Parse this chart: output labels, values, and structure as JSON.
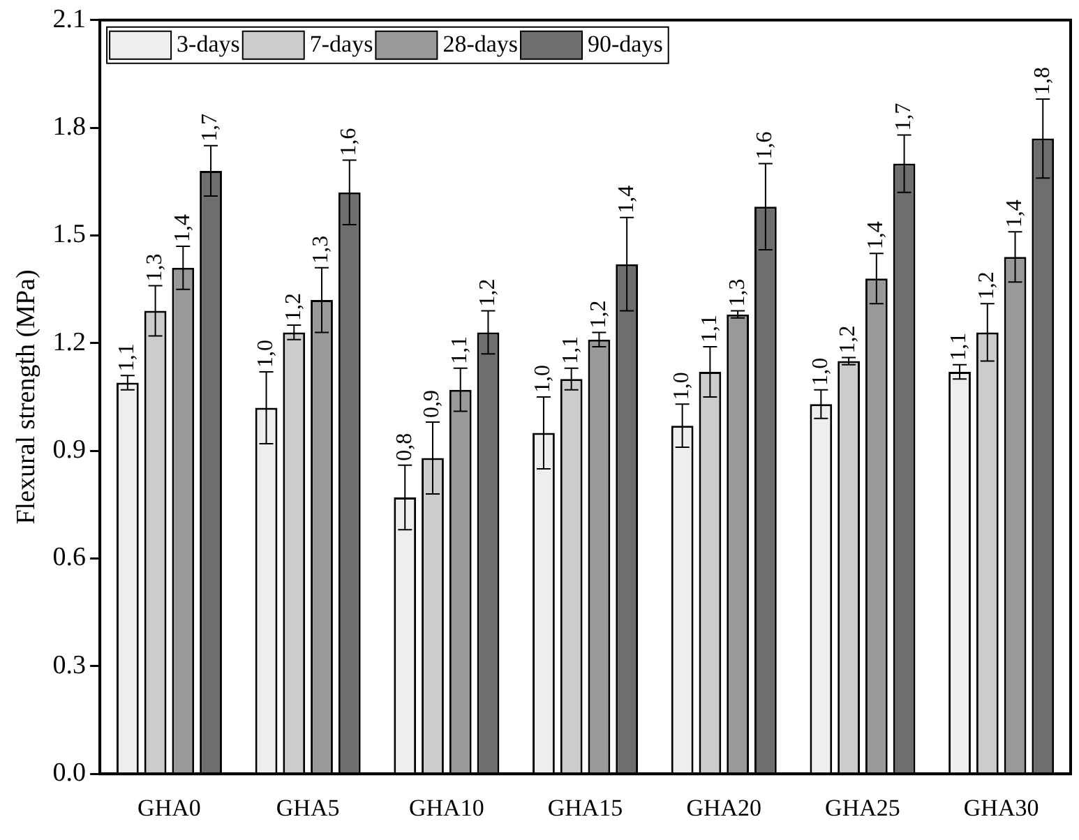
{
  "chart_data": {
    "type": "bar",
    "ylabel": "Flexural strength (MPa)",
    "categories": [
      "GHA0",
      "GHA5",
      "GHA10",
      "GHA15",
      "GHA20",
      "GHA25",
      "GHA30"
    ],
    "series": [
      {
        "name": "3-days",
        "color": "#eeeeee",
        "values": [
          1.09,
          1.02,
          0.77,
          0.95,
          0.97,
          1.03,
          1.12
        ],
        "errors": [
          0.02,
          0.1,
          0.09,
          0.1,
          0.06,
          0.04,
          0.02
        ],
        "value_labels": [
          "1,1",
          "1,0",
          "0,8",
          "1,0",
          "1,0",
          "1,0",
          "1,1"
        ]
      },
      {
        "name": "7-days",
        "color": "#cccccc",
        "values": [
          1.29,
          1.23,
          0.88,
          1.1,
          1.12,
          1.15,
          1.23
        ],
        "errors": [
          0.07,
          0.02,
          0.1,
          0.03,
          0.07,
          0.01,
          0.08
        ],
        "value_labels": [
          "1,3",
          "1,2",
          "0,9",
          "1,1",
          "1,1",
          "1,2",
          "1,2"
        ]
      },
      {
        "name": "28-days",
        "color": "#999999",
        "values": [
          1.41,
          1.32,
          1.07,
          1.21,
          1.28,
          1.38,
          1.44
        ],
        "errors": [
          0.06,
          0.09,
          0.06,
          0.02,
          0.01,
          0.07,
          0.07
        ],
        "value_labels": [
          "1,4",
          "1,3",
          "1,1",
          "1,2",
          "1,3",
          "1,4",
          "1,4"
        ]
      },
      {
        "name": "90-days",
        "color": "#6e6e6e",
        "values": [
          1.68,
          1.62,
          1.23,
          1.42,
          1.58,
          1.7,
          1.77
        ],
        "errors": [
          0.07,
          0.09,
          0.06,
          0.13,
          0.12,
          0.08,
          0.11
        ],
        "value_labels": [
          "1,7",
          "1,6",
          "1,2",
          "1,4",
          "1,6",
          "1,7",
          "1,8"
        ]
      }
    ],
    "ylim": [
      0,
      2.1
    ],
    "yticks": [
      {
        "value": 0,
        "label": "0.0"
      },
      0.3,
      0.6,
      0.9,
      1.2,
      1.5,
      1.8,
      2.1
    ],
    "grid": false,
    "legend": "top left"
  }
}
